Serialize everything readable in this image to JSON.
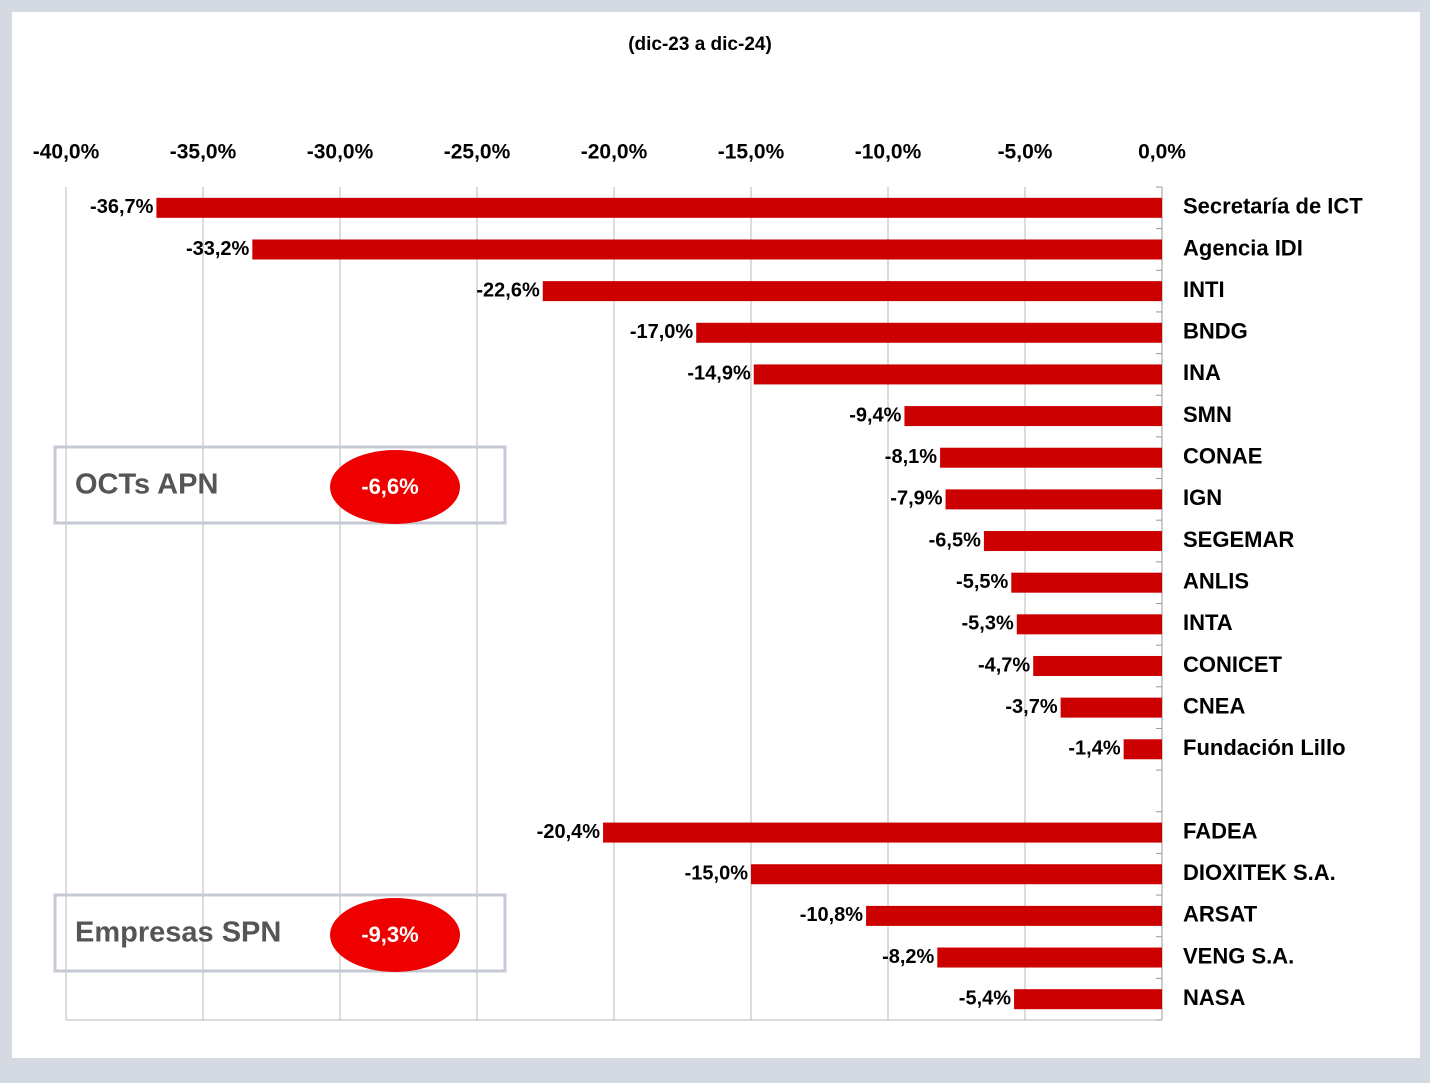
{
  "chart_data": {
    "type": "bar",
    "orientation": "horizontal",
    "title": "(dic-23 a dic-24)",
    "categories": [
      "Secretaría de ICT",
      "Agencia IDI",
      "INTI",
      "BNDG",
      "INA",
      "SMN",
      "CONAE",
      "IGN",
      "SEGEMAR",
      "ANLIS",
      "INTA",
      "CONICET",
      "CNEA",
      "Fundación Lillo",
      null,
      "FADEA",
      "DIOXITEK S.A.",
      "ARSAT",
      "VENG S.A.",
      "NASA"
    ],
    "values": [
      -36.7,
      -33.2,
      -22.6,
      -17.0,
      -14.9,
      -9.4,
      -8.1,
      -7.9,
      -6.5,
      -5.5,
      -5.3,
      -4.7,
      -3.7,
      -1.4,
      null,
      -20.4,
      -15.0,
      -10.8,
      -8.2,
      -5.4
    ],
    "value_labels": [
      "-36,7%",
      "-33,2%",
      "-22,6%",
      "-17,0%",
      "-14,9%",
      "-9,4%",
      "-8,1%",
      "-7,9%",
      "-6,5%",
      "-5,5%",
      "-5,3%",
      "-4,7%",
      "-3,7%",
      "-1,4%",
      null,
      "-20,4%",
      "-15,0%",
      "-10,8%",
      "-8,2%",
      "-5,4%"
    ],
    "color": "#cc0000",
    "xlim": [
      -40,
      0
    ],
    "xticks": [
      {
        "value": -40,
        "label": "-40,0%"
      },
      {
        "value": -35,
        "label": "-35,0%"
      },
      {
        "value": -30,
        "label": "-30,0%"
      },
      {
        "value": -25,
        "label": "-25,0%"
      },
      {
        "value": -20,
        "label": "-20,0%"
      },
      {
        "value": -15,
        "label": "-15,0%"
      },
      {
        "value": -10,
        "label": "-10,0%"
      },
      {
        "value": -5,
        "label": "-5,0%"
      },
      {
        "value": 0,
        "label": "0,0%"
      }
    ],
    "grid": true,
    "annotations": [
      {
        "text": "OCTs APN",
        "value": -6.6,
        "value_label": "-6,6%"
      },
      {
        "text": "Empresas SPN",
        "value": -9.3,
        "value_label": "-9,3%"
      }
    ]
  }
}
